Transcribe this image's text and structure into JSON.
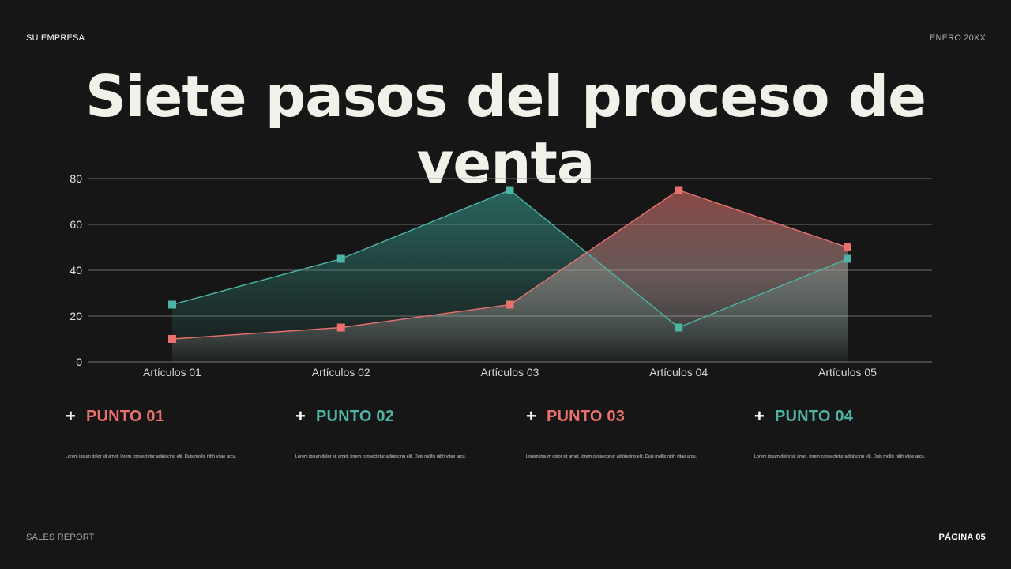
{
  "header": {
    "company": "SU EMPRESA",
    "date": "ENERO 20XX"
  },
  "title": "Siete pasos del proceso de venta",
  "footer": {
    "report": "SALES REPORT",
    "page": "PÁGINA 05"
  },
  "colors": {
    "teal": "#4db3a4",
    "coral": "#e8716d",
    "background": "#161616"
  },
  "chart_data": {
    "type": "area",
    "categories": [
      "Artículos 01",
      "Artículos 02",
      "Artículos 03",
      "Artículos 04",
      "Artículos 05"
    ],
    "series": [
      {
        "color": "#4db3a4",
        "values": [
          25,
          45,
          75,
          15,
          45
        ]
      },
      {
        "color": "#e8716d",
        "values": [
          10,
          15,
          25,
          75,
          50
        ]
      }
    ],
    "yticks": [
      0,
      20,
      40,
      60,
      80
    ],
    "ylim": [
      0,
      80
    ],
    "grid": true,
    "legend": "none"
  },
  "points": [
    {
      "icon": "plus-icon",
      "title": "PUNTO 01",
      "color": "#e8716d",
      "text": "Lorem ipsum dolor sit amet, lorem consectetur adipiscing elit. Duis mollis nibh vitae arcu."
    },
    {
      "icon": "plus-icon",
      "title": "PUNTO 02",
      "color": "#4db3a4",
      "text": "Lorem ipsum dolor sit amet, lorem consectetur adipiscing elit. Duis mollis nibh vitae arcu."
    },
    {
      "icon": "plus-icon",
      "title": "PUNTO 03",
      "color": "#e8716d",
      "text": "Lorem ipsum dolor sit amet, lorem consectetur adipiscing elit. Duis mollis nibh vitae arcu."
    },
    {
      "icon": "plus-icon",
      "title": "PUNTO 04",
      "color": "#4db3a4",
      "text": "Lorem ipsum dolor sit amet, lorem consectetur adipiscing elit. Duis mollis nibh vitae arcu."
    }
  ]
}
